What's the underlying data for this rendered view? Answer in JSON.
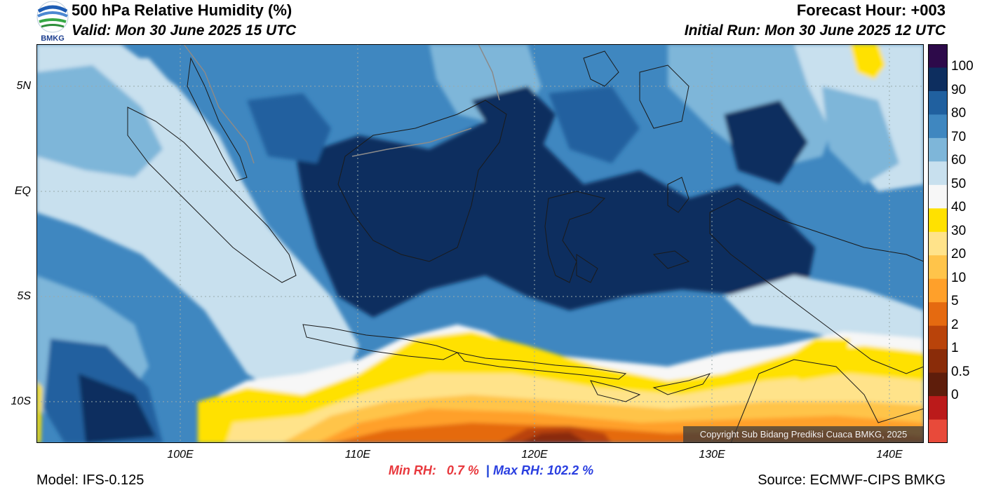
{
  "header": {
    "title": "500 hPa Relative Humidity (%)",
    "valid": "Valid: Mon 30 June 2025 15 UTC",
    "forecast_hour": "Forecast Hour: +003",
    "initial_run": "Initial Run: Mon 30 June 2025 12 UTC"
  },
  "logo": {
    "text": "BMKG",
    "icon": "bmkg-logo-icon"
  },
  "map": {
    "lat_labels": [
      "5N",
      "EQ",
      "5S",
      "10S"
    ],
    "lon_labels": [
      "100E",
      "110E",
      "120E",
      "130E",
      "140E"
    ],
    "copyright": "Copyright Sub Bidang Prediksi Cuaca BMKG, 2025"
  },
  "colorbar": {
    "labels": [
      "100",
      "90",
      "80",
      "70",
      "60",
      "50",
      "40",
      "30",
      "20",
      "10",
      "5",
      "2",
      "1",
      "0.5",
      "0"
    ],
    "colors": [
      "#2d0a4a",
      "#0d2e5f",
      "#20609f",
      "#3f87c0",
      "#7eb6d9",
      "#c8e0ee",
      "#f7f7f7",
      "#ffe100",
      "#ffe38a",
      "#ffc44a",
      "#ffa02a",
      "#e56a10",
      "#b9430a",
      "#8a2c09",
      "#5e1d0b",
      "#bb1a1a",
      "#e84a3a"
    ]
  },
  "stats": {
    "min_label": "Min RH:",
    "min_value": "0.7 %",
    "separator": "|",
    "max_label": "Max RH:",
    "max_value": "102.2 %"
  },
  "footer": {
    "model": "Model: IFS-0.125",
    "source": "Source: ECMWF-CIPS BMKG"
  }
}
